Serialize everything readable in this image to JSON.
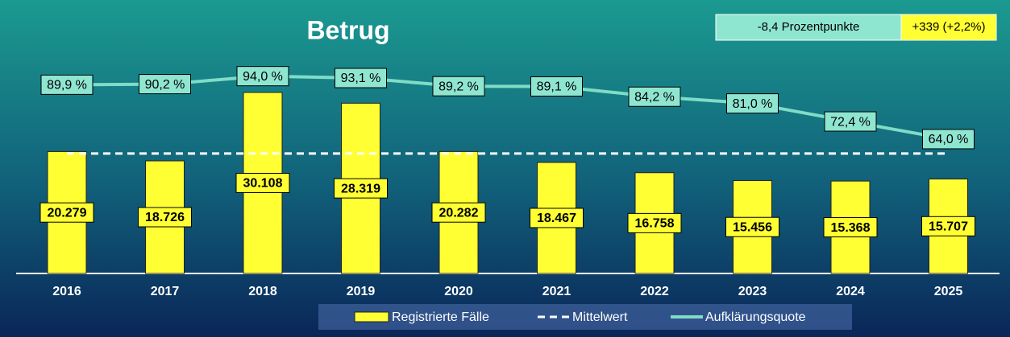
{
  "chart_data": {
    "type": "bar_line",
    "title": "Betrug",
    "annotations": [
      "-8,4 Prozentpunkte",
      "+339 (+2,2%)"
    ],
    "categories": [
      "2016",
      "2017",
      "2018",
      "2019",
      "2020",
      "2021",
      "2022",
      "2023",
      "2024",
      "2025"
    ],
    "series": [
      {
        "name": "Registrierte Fälle",
        "color": "#ffff33",
        "values": [
          20279,
          18726,
          30108,
          28319,
          20282,
          18467,
          16758,
          15456,
          15368,
          15707
        ],
        "value_labels": [
          "20.279",
          "18.726",
          "30.108",
          "28.319",
          "20.282",
          "18.467",
          "16.758",
          "15.456",
          "15.368",
          "15.707"
        ]
      },
      {
        "name": "Aufklärungsquote",
        "color": "#7fdcc6",
        "axis": "y2",
        "values": [
          89.9,
          90.2,
          94.0,
          93.1,
          89.2,
          89.1,
          84.2,
          81.0,
          72.4,
          64.0
        ],
        "value_labels": [
          "89,9 %",
          "90,2 %",
          "94,0 %",
          "93,1 %",
          "89,2 %",
          "89,1 %",
          "84,2 %",
          "81,0 %",
          "72,4 %",
          "64,0 %"
        ]
      }
    ],
    "mean": {
      "name": "Mittelwert",
      "value": 19947,
      "color": "#ffffff"
    },
    "ylim": [
      0,
      40000
    ],
    "y2lim": [
      0,
      100
    ]
  }
}
